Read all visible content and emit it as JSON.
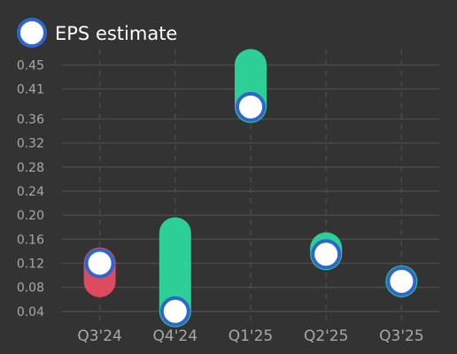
{
  "chart_data": {
    "type": "range-dot",
    "categories": [
      "Q3'24",
      "Q4'24",
      "Q1'25",
      "Q2'25",
      "Q3'25"
    ],
    "series": [
      {
        "name": "EPS estimate",
        "values": [
          0.12,
          0.04,
          0.38,
          0.135,
          0.09
        ]
      },
      {
        "values": [
          0.09,
          0.17,
          0.45,
          0.145,
          0.09
        ]
      }
    ],
    "y_ticks": [
      "0.04",
      "0.08",
      "0.12",
      "0.16",
      "0.20",
      "0.24",
      "0.28",
      "0.32",
      "0.36",
      "0.41",
      "0.45"
    ],
    "ylim": [
      0.0235,
      0.4755
    ],
    "grid": true,
    "legend_position": "top-left",
    "colors": {
      "background": "#333333",
      "beat": "#2ecf96",
      "miss": "#de4a5e",
      "estimate_fill": "#ffffff",
      "estimate_border": "#2e66d0",
      "grid": "#4a4a4a",
      "tick_text": "#a8a8a8"
    }
  }
}
